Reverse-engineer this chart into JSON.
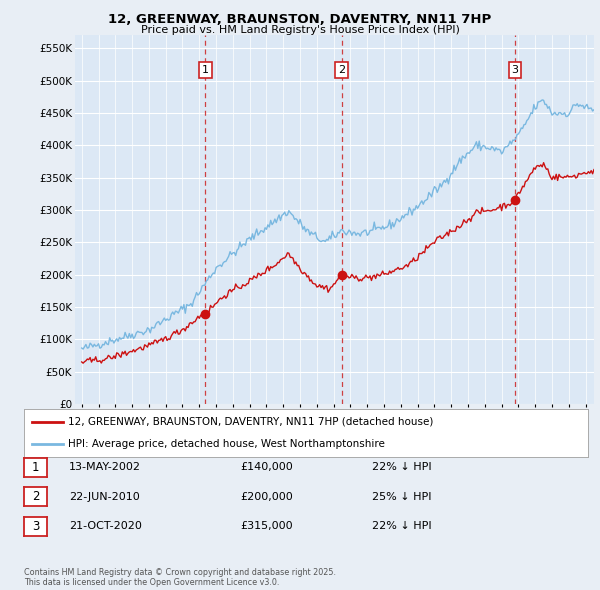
{
  "title1": "12, GREENWAY, BRAUNSTON, DAVENTRY, NN11 7HP",
  "title2": "Price paid vs. HM Land Registry's House Price Index (HPI)",
  "background_color": "#e8eef5",
  "plot_bg": "#dce8f5",
  "grid_color": "#ffffff",
  "hpi_color": "#7ab8e0",
  "price_color": "#cc1111",
  "dashed_line_color": "#cc2222",
  "purchases": [
    {
      "date_num": 2002.36,
      "price": 140000,
      "label": "1"
    },
    {
      "date_num": 2010.47,
      "price": 200000,
      "label": "2"
    },
    {
      "date_num": 2020.8,
      "price": 315000,
      "label": "3"
    }
  ],
  "legend_entries": [
    "12, GREENWAY, BRAUNSTON, DAVENTRY, NN11 7HP (detached house)",
    "HPI: Average price, detached house, West Northamptonshire"
  ],
  "table_rows": [
    [
      "1",
      "13-MAY-2002",
      "£140,000",
      "22% ↓ HPI"
    ],
    [
      "2",
      "22-JUN-2010",
      "£200,000",
      "25% ↓ HPI"
    ],
    [
      "3",
      "21-OCT-2020",
      "£315,000",
      "22% ↓ HPI"
    ]
  ],
  "footnote": "Contains HM Land Registry data © Crown copyright and database right 2025.\nThis data is licensed under the Open Government Licence v3.0.",
  "ylim": [
    0,
    570000
  ],
  "yticks": [
    0,
    50000,
    100000,
    150000,
    200000,
    250000,
    300000,
    350000,
    400000,
    450000,
    500000,
    550000
  ],
  "xlim_start": 1994.6,
  "xlim_end": 2025.5
}
